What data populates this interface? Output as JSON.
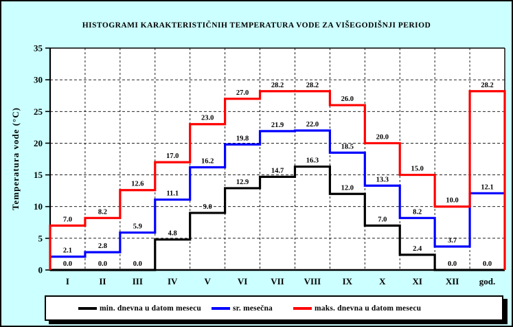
{
  "page": {
    "background": "#CCFFFF",
    "plot_background": "#FFFFFF",
    "frame_color": "#000000"
  },
  "chart_data": {
    "type": "line",
    "subtype": "step-histogram",
    "title": "HISTOGRAMI KARAKTERISTIČNIH TEMPERATURA VODE ZA VIŠEGODIŠNJI PERIOD",
    "ylabel": "Temperatura vode (°C)",
    "xlabel": "",
    "ylim": [
      0,
      35
    ],
    "ytick_step": 5,
    "yticks": [
      0,
      5,
      10,
      15,
      20,
      25,
      30,
      35
    ],
    "grid": "dashed horizontal and vertical",
    "legend_position": "bottom",
    "categories": [
      "I",
      "II",
      "III",
      "IV",
      "V",
      "VI",
      "VII",
      "VIII",
      "IX",
      "X",
      "XI",
      "XII",
      "god."
    ],
    "series": [
      {
        "name": "min. dnevna u datom mesecu",
        "color": "#000000",
        "values": [
          0.0,
          0.0,
          0.0,
          4.8,
          9.0,
          12.9,
          14.7,
          16.3,
          12.0,
          7.0,
          2.4,
          0.0,
          0.0
        ]
      },
      {
        "name": "sr. mesečna",
        "color": "#0000FF",
        "values": [
          2.1,
          2.8,
          5.9,
          11.1,
          16.2,
          19.8,
          21.9,
          22.0,
          18.5,
          13.3,
          8.2,
          3.7,
          12.1
        ]
      },
      {
        "name": "maks. dnevna u datom mesecu",
        "color": "#FF0000",
        "values": [
          7.0,
          8.2,
          12.6,
          17.0,
          23.0,
          27.0,
          28.2,
          28.2,
          26.0,
          20.0,
          15.0,
          10.0,
          28.2
        ]
      }
    ]
  }
}
